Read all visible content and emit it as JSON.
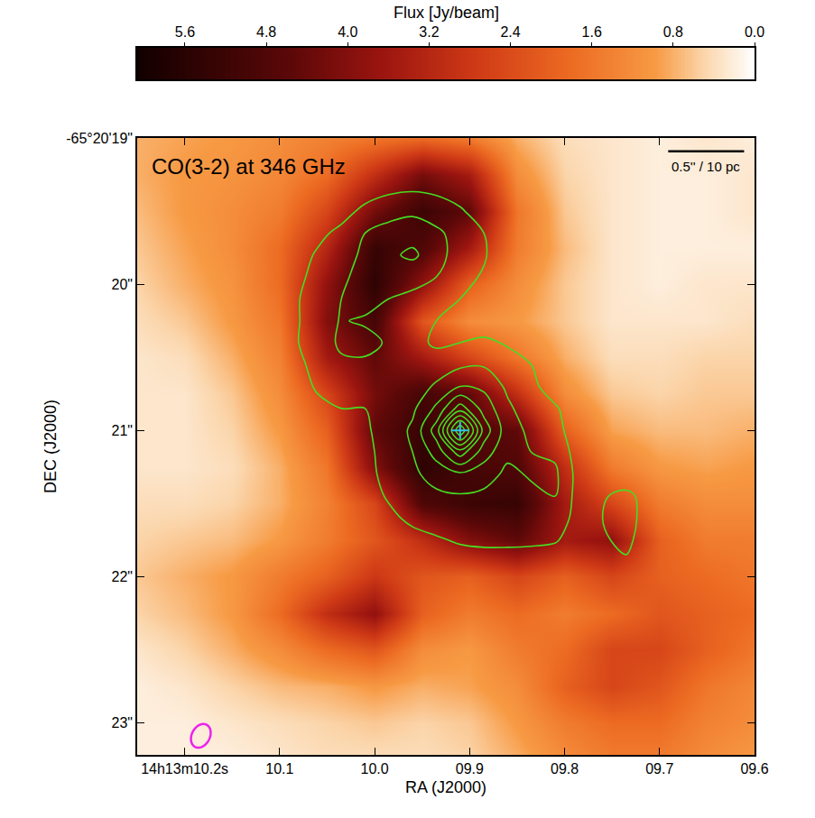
{
  "chart_data": {
    "type": "heatmap",
    "title": "CO(3-2) at 346 GHz",
    "xlabel": "RA (J2000)",
    "ylabel": "DEC (J2000)",
    "colorbar_label": "Flux [Jy/beam]",
    "xlim": [
      10.25,
      9.6
    ],
    "ylim": [
      23.22,
      19
    ],
    "xticks": [
      {
        "value": 10.2,
        "label": "14h13m10.2s"
      },
      10.1,
      {
        "value": 10,
        "label": "10.0"
      },
      {
        "value": 9.9,
        "label": "09.9"
      },
      {
        "value": 9.8,
        "label": "09.8"
      },
      {
        "value": 9.7,
        "label": "09.7"
      },
      {
        "value": 9.6,
        "label": "09.6"
      }
    ],
    "yticks": [
      {
        "value": 19,
        "label": "-65°20'19\""
      },
      {
        "value": 20,
        "label": "20\""
      },
      {
        "value": 21,
        "label": "21\""
      },
      {
        "value": 22,
        "label": "22\""
      },
      {
        "value": 23,
        "label": "23\""
      }
    ],
    "clim": [
      0,
      6.07
    ],
    "cticks": [
      5.6,
      4.8,
      {
        "value": 4,
        "label": "4.0"
      },
      3.2,
      2.4,
      1.6,
      0.8,
      {
        "value": 0,
        "label": "0.0"
      }
    ],
    "x": [
      10.25,
      10.2,
      10.15,
      10.1,
      10.05,
      10.0,
      9.95,
      9.9,
      9.85,
      9.8,
      9.75,
      9.7,
      9.65,
      9.6
    ],
    "y": [
      19,
      19.25,
      19.5,
      19.75,
      20,
      20.25,
      20.5,
      20.75,
      21,
      21.25,
      21.5,
      21.75,
      22,
      22.25,
      22.5,
      22.75,
      23,
      23.25
    ],
    "z": [
      [
        0.8,
        0.9,
        1.0,
        1.2,
        1.4,
        1.6,
        1.8,
        1.5,
        0.8,
        0.4,
        0.3,
        0.2,
        0.3,
        0.2
      ],
      [
        0.8,
        1.0,
        1.1,
        1.3,
        1.8,
        3.0,
        4.2,
        3.5,
        1.2,
        0.5,
        0.3,
        0.2,
        0.2,
        0.3
      ],
      [
        0.7,
        1.0,
        1.2,
        1.5,
        2.5,
        4.2,
        5.2,
        4.5,
        1.6,
        0.6,
        0.3,
        0.2,
        0.2,
        0.3
      ],
      [
        0.6,
        0.9,
        1.2,
        1.8,
        3.2,
        5.3,
        4.8,
        3.5,
        1.5,
        0.7,
        0.3,
        0.2,
        0.2,
        0.2
      ],
      [
        0.5,
        0.8,
        1.1,
        1.8,
        3.8,
        5.5,
        3.8,
        2.0,
        1.2,
        0.6,
        0.3,
        0.2,
        0.3,
        0.3
      ],
      [
        0.4,
        0.6,
        1.0,
        1.6,
        4.0,
        5.0,
        2.2,
        1.2,
        1.0,
        0.6,
        0.3,
        0.3,
        0.3,
        0.4
      ],
      [
        0.3,
        0.4,
        0.8,
        1.4,
        3.5,
        4.5,
        3.5,
        2.5,
        1.6,
        0.8,
        0.4,
        0.4,
        0.5,
        0.5
      ],
      [
        0.3,
        0.3,
        0.6,
        1.2,
        2.5,
        4.2,
        5.0,
        4.5,
        3.0,
        1.2,
        0.6,
        0.5,
        0.6,
        0.6
      ],
      [
        0.3,
        0.3,
        0.5,
        1.0,
        2.0,
        4.5,
        5.3,
        4.8,
        4.5,
        2.0,
        0.9,
        0.7,
        0.7,
        0.8
      ],
      [
        0.3,
        0.3,
        0.4,
        0.8,
        1.6,
        4.0,
        5.5,
        5.0,
        4.8,
        3.0,
        1.5,
        1.0,
        0.9,
        1.0
      ],
      [
        0.4,
        0.4,
        0.5,
        0.8,
        1.4,
        2.5,
        4.8,
        5.2,
        5.3,
        3.5,
        2.5,
        1.5,
        1.2,
        1.2
      ],
      [
        0.5,
        0.6,
        0.7,
        1.0,
        1.5,
        2.2,
        3.0,
        4.0,
        4.5,
        3.5,
        3.8,
        2.0,
        1.5,
        1.5
      ],
      [
        0.6,
        0.8,
        1.0,
        1.5,
        2.0,
        2.8,
        2.2,
        2.0,
        2.5,
        2.0,
        2.5,
        2.0,
        1.8,
        1.6
      ],
      [
        0.5,
        0.7,
        1.0,
        1.8,
        3.0,
        3.8,
        2.0,
        1.5,
        1.8,
        1.5,
        1.8,
        2.2,
        2.0,
        1.8
      ],
      [
        0.3,
        0.5,
        0.8,
        1.2,
        1.8,
        2.2,
        1.2,
        1.0,
        1.5,
        1.8,
        2.5,
        2.5,
        2.0,
        1.6
      ],
      [
        0.2,
        0.3,
        0.5,
        0.7,
        0.8,
        1.0,
        0.8,
        0.9,
        1.2,
        2.0,
        2.5,
        2.2,
        1.6,
        1.3
      ],
      [
        0.2,
        0.2,
        0.3,
        0.4,
        0.5,
        0.6,
        0.5,
        0.6,
        1.0,
        1.5,
        1.8,
        1.8,
        1.4,
        1.2
      ],
      [
        0.2,
        0.2,
        0.2,
        0.3,
        0.4,
        0.4,
        0.4,
        0.5,
        0.8,
        1.2,
        1.5,
        1.5,
        1.2,
        1.0
      ]
    ],
    "contours": {
      "color": "#44dd22",
      "levels": {
        "start": 1,
        "end": 9,
        "step": 1
      },
      "x": [
        10.085,
        10.06,
        10.035,
        10.01,
        9.985,
        9.96,
        9.935,
        9.91,
        9.885,
        9.86,
        9.835,
        9.81,
        9.785,
        9.76,
        9.735,
        9.71
      ],
      "y": [
        19.2,
        19.35,
        19.5,
        19.65,
        19.8,
        19.95,
        20.1,
        20.25,
        20.4,
        20.55,
        20.7,
        20.85,
        21.0,
        21.15,
        21.3,
        21.45,
        21.6,
        21.75,
        21.9
      ],
      "z": [
        [
          0.2,
          0.2,
          0.3,
          0.4,
          0.6,
          0.7,
          0.6,
          0.4,
          0.3,
          0.2,
          0.2,
          0.2,
          0.2,
          0.2,
          0.2,
          0.2
        ],
        [
          0.2,
          0.3,
          0.4,
          0.6,
          0.8,
          0.9,
          0.8,
          0.6,
          0.3,
          0.2,
          0.2,
          0.2,
          0.2,
          0.2,
          0.2,
          0.2
        ],
        [
          0.2,
          0.4,
          0.7,
          1.2,
          1.6,
          1.8,
          1.5,
          1.1,
          0.6,
          0.2,
          0.2,
          0.2,
          0.2,
          0.2,
          0.2,
          0.2
        ],
        [
          0.3,
          0.8,
          1.2,
          2.0,
          2.4,
          2.6,
          2.2,
          1.6,
          1.0,
          0.3,
          0.2,
          0.2,
          0.2,
          0.2,
          0.2,
          0.2
        ],
        [
          0.6,
          1.1,
          1.6,
          2.2,
          2.8,
          3.2,
          2.4,
          1.5,
          1.1,
          0.3,
          0.2,
          0.2,
          0.2,
          0.2,
          0.2,
          0.2
        ],
        [
          0.8,
          1.2,
          1.8,
          2.4,
          2.2,
          2.3,
          2.0,
          1.3,
          0.9,
          0.3,
          0.2,
          0.2,
          0.2,
          0.2,
          0.2,
          0.2
        ],
        [
          0.9,
          1.3,
          2.0,
          2.6,
          2.0,
          1.8,
          1.4,
          1.0,
          0.6,
          0.3,
          0.2,
          0.2,
          0.2,
          0.2,
          0.2,
          0.2
        ],
        [
          0.9,
          1.3,
          2.1,
          1.8,
          1.6,
          1.3,
          1.0,
          0.7,
          0.4,
          0.3,
          0.2,
          0.2,
          0.2,
          0.2,
          0.2,
          0.2
        ],
        [
          0.9,
          1.4,
          2.2,
          2.5,
          1.8,
          1.2,
          0.9,
          1.0,
          1.2,
          0.9,
          0.4,
          0.2,
          0.2,
          0.2,
          0.2,
          0.2
        ],
        [
          0.8,
          1.2,
          1.8,
          1.7,
          1.3,
          1.0,
          1.3,
          1.8,
          1.9,
          1.4,
          1.0,
          0.4,
          0.2,
          0.2,
          0.2,
          0.2
        ],
        [
          0.6,
          1.1,
          1.4,
          1.2,
          1.0,
          1.3,
          2.2,
          3.0,
          2.8,
          1.8,
          1.2,
          0.6,
          0.2,
          0.2,
          0.2,
          0.2
        ],
        [
          0.4,
          0.8,
          1.0,
          1.0,
          1.2,
          1.8,
          3.2,
          5.5,
          3.6,
          2.2,
          1.4,
          1.1,
          0.5,
          0.2,
          0.2,
          0.2
        ],
        [
          0.3,
          0.5,
          0.7,
          0.9,
          1.3,
          2.2,
          4.5,
          10,
          4.6,
          2.4,
          1.8,
          1.3,
          0.5,
          0.2,
          0.2,
          0.2
        ],
        [
          0.2,
          0.3,
          0.5,
          0.8,
          1.3,
          2.0,
          3.4,
          5.5,
          3.5,
          2.2,
          2.0,
          1.8,
          0.5,
          0.2,
          0.2,
          0.2
        ],
        [
          0.2,
          0.3,
          0.4,
          0.8,
          1.2,
          1.8,
          2.4,
          2.8,
          2.4,
          1.8,
          2.1,
          2.2,
          0.6,
          0.3,
          0.2,
          0.2
        ],
        [
          0.2,
          0.2,
          0.3,
          0.6,
          1.1,
          1.5,
          1.8,
          1.9,
          1.8,
          1.6,
          1.8,
          2.0,
          0.6,
          0.9,
          1.3,
          0.5
        ],
        [
          0.2,
          0.2,
          0.3,
          0.4,
          0.8,
          1.2,
          1.4,
          1.6,
          1.5,
          1.4,
          1.4,
          1.6,
          0.6,
          1.0,
          1.4,
          0.5
        ],
        [
          0.2,
          0.2,
          0.2,
          0.3,
          0.5,
          0.7,
          0.9,
          1.1,
          1.2,
          1.2,
          1.2,
          1.1,
          0.5,
          0.9,
          1.2,
          0.5
        ],
        [
          0.2,
          0.2,
          0.2,
          0.2,
          0.3,
          0.4,
          0.5,
          0.6,
          0.6,
          0.6,
          0.5,
          0.4,
          0.3,
          0.8,
          0.9,
          0.4
        ]
      ]
    },
    "nucleus": {
      "x": [
        9.91
      ],
      "y": [
        21.0
      ],
      "marker": "cross",
      "color": "#2ec8ea"
    },
    "beam": {
      "x": 10.183,
      "y": 23.09,
      "major": 0.17,
      "minor": 0.12,
      "color": "#ee22ee"
    },
    "scale_bar": {
      "label": "0.5'' / 10 pc",
      "length": 0.5,
      "x": 9.611,
      "y": 19.09
    }
  }
}
